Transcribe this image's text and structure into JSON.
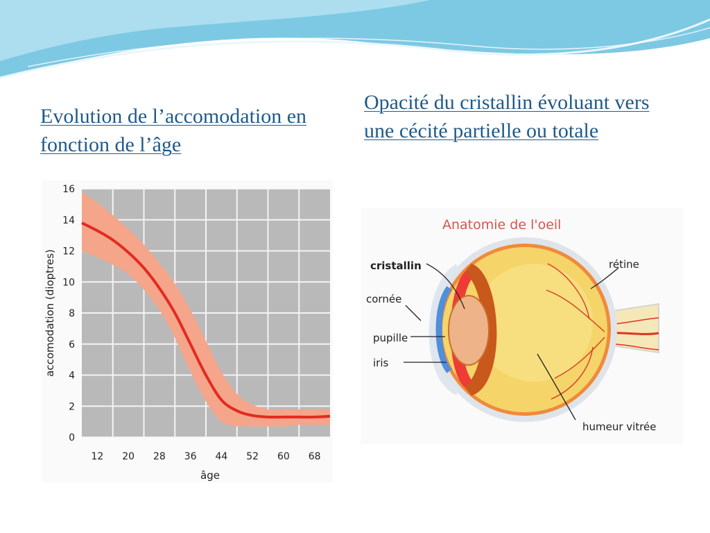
{
  "slide": {
    "title_left": "Evolution de l’accomodation en fonction de l’âge",
    "title_right": "Opacité du cristallin évoluant vers une cécité partielle ou totale"
  },
  "colors": {
    "heading": "#1f5a8a",
    "band": "#f4a58a",
    "curve": "#e32b22",
    "plot_bg": "#b9b9b9",
    "banner": "#7dc9e3"
  },
  "chart_data": {
    "type": "line",
    "title": "",
    "xlabel": "âge",
    "ylabel": "accomodation (dioptres)",
    "xlim": [
      8,
      72
    ],
    "ylim": [
      0,
      16
    ],
    "grid": true,
    "x_ticks": [
      12,
      20,
      28,
      36,
      44,
      52,
      60,
      68
    ],
    "y_ticks": [
      0,
      2,
      4,
      6,
      8,
      10,
      12,
      14,
      16
    ],
    "series": [
      {
        "x": [
          8,
          12,
          16,
          20,
          24,
          28,
          32,
          36,
          40,
          44,
          48,
          52,
          56,
          60,
          64,
          68,
          72
        ],
        "y": [
          13.8,
          13.3,
          12.7,
          11.9,
          10.9,
          9.6,
          8.0,
          6.0,
          4.0,
          2.4,
          1.7,
          1.4,
          1.3,
          1.3,
          1.3,
          1.3,
          1.35
        ],
        "band_upper": [
          15.8,
          15.1,
          14.3,
          13.4,
          12.4,
          11.2,
          9.9,
          8.2,
          6.2,
          4.2,
          2.8,
          2.1,
          1.8,
          1.8,
          1.8,
          1.8,
          1.8
        ],
        "band_lower": [
          12.0,
          11.6,
          11.1,
          10.5,
          9.5,
          8.2,
          6.4,
          4.2,
          2.3,
          1.0,
          0.7,
          0.7,
          0.7,
          0.7,
          0.8,
          0.8,
          0.8
        ]
      }
    ]
  },
  "eye": {
    "title": "Anatomie de l'oeil",
    "labels": {
      "cristallin": "cristallin",
      "cornee": "cornée",
      "pupille": "pupille",
      "iris": "iris",
      "retine": "rétine",
      "humeur": "humeur vitrée"
    }
  }
}
